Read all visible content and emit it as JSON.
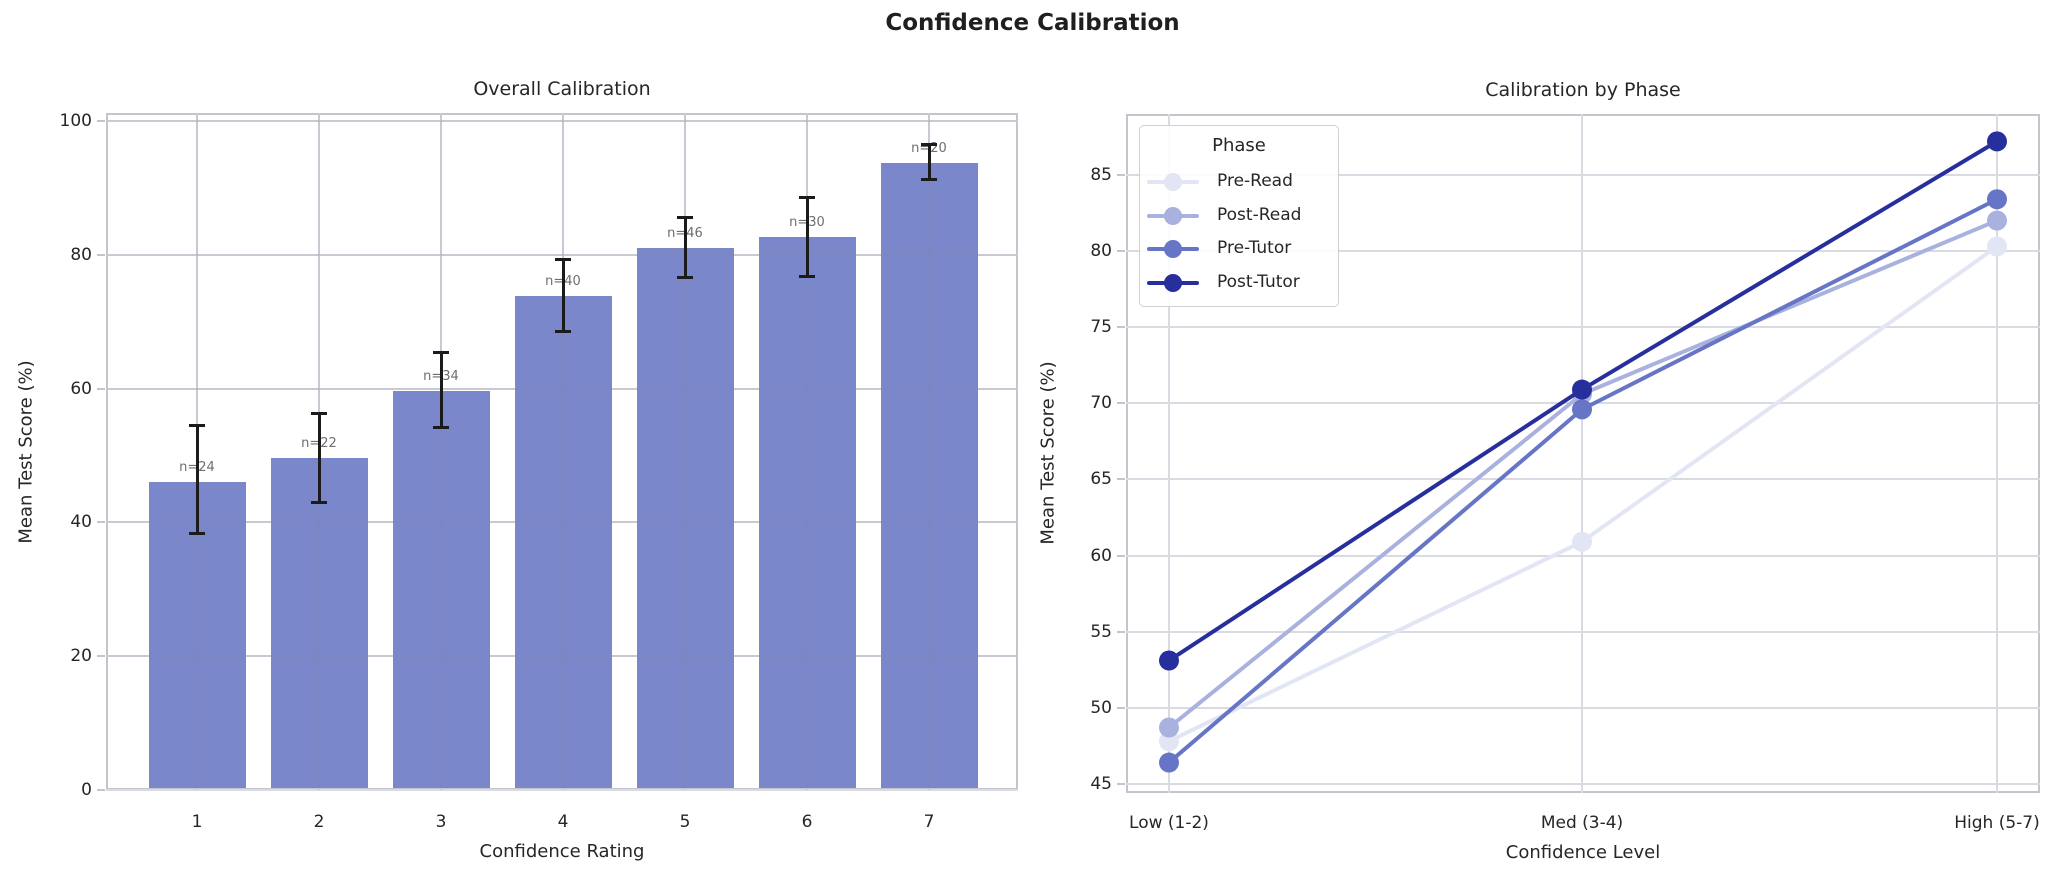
{
  "figure_title": "Confidence Calibration",
  "colors": {
    "bar_fill": "#7b87cb",
    "error_bar": "#1b1b1b",
    "grid": "#dadbe2",
    "spine": "#c4c5cc",
    "text": "#262626",
    "n_label_text": "#6e6e6e"
  },
  "chart_data": [
    {
      "type": "bar",
      "title": "Overall Calibration",
      "xlabel": "Confidence Rating",
      "ylabel": "Mean Test Score (%)",
      "categories": [
        "1",
        "2",
        "3",
        "4",
        "5",
        "6",
        "7"
      ],
      "values": [
        46.1,
        49.6,
        59.6,
        73.8,
        81.0,
        82.6,
        93.7
      ],
      "error_low": [
        38.4,
        43.0,
        54.2,
        68.6,
        76.7,
        76.8,
        91.3
      ],
      "error_high": [
        54.5,
        56.3,
        65.5,
        79.4,
        85.7,
        88.6,
        96.5
      ],
      "n_labels": [
        "n=24",
        "n=22",
        "n=34",
        "n=40",
        "n=46",
        "n=30",
        "n=20"
      ],
      "yticks": [
        0,
        20,
        40,
        60,
        80,
        100
      ],
      "ylim": [
        0,
        101.2
      ],
      "grid": true,
      "bar_color": "#7b87cb"
    },
    {
      "type": "line",
      "title": "Calibration by Phase",
      "xlabel": "Confidence Level",
      "ylabel": "Mean Test Score (%)",
      "categories": [
        "Low (1-2)",
        "Med (3-4)",
        "High (5-7)"
      ],
      "series": [
        {
          "name": "Pre-Read",
          "color": "#e2e5f4",
          "values": [
            47.8,
            60.9,
            80.3
          ]
        },
        {
          "name": "Post-Read",
          "color": "#a9b1df",
          "values": [
            48.7,
            70.6,
            82.0
          ]
        },
        {
          "name": "Pre-Tutor",
          "color": "#6775c6",
          "values": [
            46.4,
            69.6,
            83.4
          ]
        },
        {
          "name": "Post-Tutor",
          "color": "#262f9b",
          "values": [
            53.1,
            70.9,
            87.2
          ]
        }
      ],
      "yticks": [
        45,
        50,
        55,
        60,
        65,
        70,
        75,
        80,
        85
      ],
      "ylim": [
        44.4,
        89.0
      ],
      "grid": true,
      "legend_title": "Phase",
      "legend_position": "upper left"
    }
  ]
}
